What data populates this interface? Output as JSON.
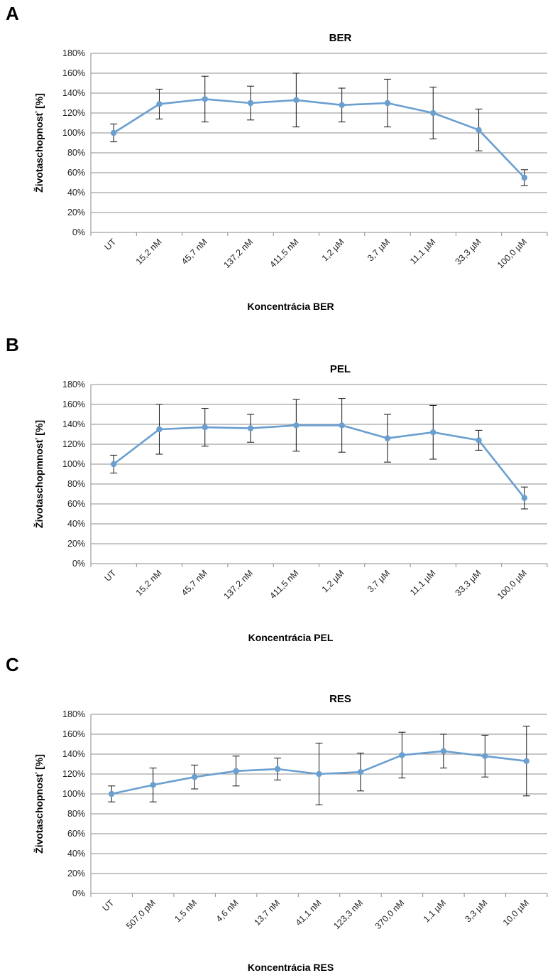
{
  "panels": [
    {
      "letter": "A"
    },
    {
      "letter": "B"
    },
    {
      "letter": "C"
    }
  ],
  "series_color": "#6a9fd0",
  "chart_data": [
    {
      "type": "line",
      "title": "BER",
      "xlabel": "Koncentrácia BER",
      "ylabel": "Životaschopnosť [%]",
      "ylim": [
        0,
        180
      ],
      "ytick_labels": [
        "0%",
        "20%",
        "40%",
        "60%",
        "80%",
        "100%",
        "120%",
        "140%",
        "160%",
        "180%"
      ],
      "categories": [
        "UT",
        "15,2 nM",
        "45,7 nM",
        "137,2 nM",
        "411,5 nM",
        "1,2 µM",
        "3,7 µM",
        "11,1 µM",
        "33,3 µM",
        "100,0 µM"
      ],
      "values": [
        100,
        129,
        134,
        130,
        133,
        128,
        130,
        120,
        103,
        55
      ],
      "error": [
        9,
        15,
        23,
        17,
        27,
        17,
        24,
        26,
        21,
        8
      ],
      "grid": true
    },
    {
      "type": "line",
      "title": "PEL",
      "xlabel": "Koncentrácia PEL",
      "ylabel": "Životaschopmnosť [%]",
      "ylim": [
        0,
        180
      ],
      "ytick_labels": [
        "0%",
        "20%",
        "40%",
        "60%",
        "80%",
        "100%",
        "120%",
        "140%",
        "160%",
        "180%"
      ],
      "categories": [
        "UT",
        "15,2 nM",
        "45,7 nM",
        "137,2 nM",
        "411,5 nM",
        "1,2 µM",
        "3,7 µM",
        "11,1 µM",
        "33,3 µM",
        "100,0 µM"
      ],
      "values": [
        100,
        135,
        137,
        136,
        139,
        139,
        126,
        132,
        124,
        66
      ],
      "error": [
        9,
        25,
        19,
        14,
        26,
        27,
        24,
        27,
        10,
        11
      ],
      "grid": true
    },
    {
      "type": "line",
      "title": "RES",
      "xlabel": "Koncentrácia RES",
      "ylabel": "Životaschopnosť [%]",
      "ylim": [
        0,
        180
      ],
      "ytick_labels": [
        "0%",
        "20%",
        "40%",
        "60%",
        "80%",
        "100%",
        "120%",
        "140%",
        "160%",
        "180%"
      ],
      "categories": [
        "UT",
        "507,0 pM",
        "1,5 nM",
        "4,6 nM",
        "13,7 nM",
        "41,1 nM",
        "123,3 nM",
        "370,0 nM",
        "1,1 µM",
        "3,3 µM",
        "10,0 µM"
      ],
      "values": [
        100,
        109,
        117,
        123,
        125,
        120,
        122,
        139,
        143,
        138,
        133
      ],
      "error": [
        8,
        17,
        12,
        15,
        11,
        31,
        19,
        23,
        17,
        21,
        35
      ],
      "grid": true
    }
  ]
}
